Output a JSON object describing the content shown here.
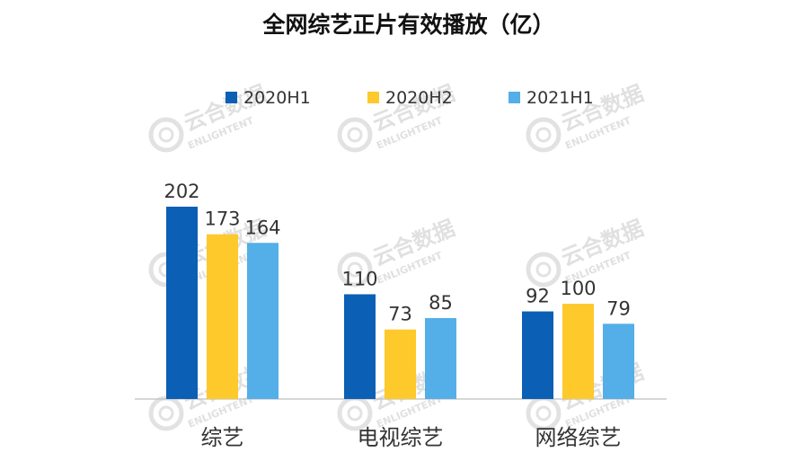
{
  "chart_data": {
    "type": "bar",
    "title": "全网综艺正片有效播放（亿）",
    "categories": [
      "综艺",
      "电视综艺",
      "网络综艺"
    ],
    "series": [
      {
        "name": "2020H1",
        "color": "#0b5fb4",
        "values": [
          202,
          110,
          92
        ]
      },
      {
        "name": "2020H2",
        "color": "#fdc92b",
        "values": [
          173,
          73,
          100
        ]
      },
      {
        "name": "2021H1",
        "color": "#54aee8",
        "values": [
          164,
          85,
          79
        ]
      }
    ],
    "xlabel": "",
    "ylabel": "",
    "ylim": [
      0,
      220
    ],
    "grid": false,
    "legend_position": "top",
    "data_labels": true
  },
  "watermark": {
    "text_cn": "云合数据",
    "text_en": "ENLIGHTENT"
  }
}
